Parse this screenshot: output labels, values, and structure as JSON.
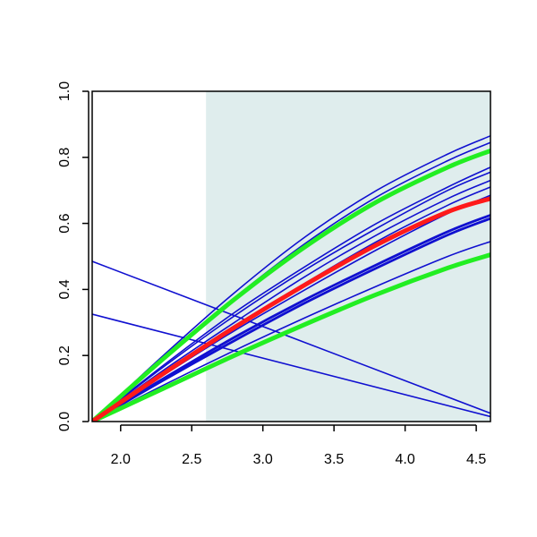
{
  "chart_data": {
    "type": "line",
    "title": "",
    "xlabel": "",
    "ylabel": "",
    "xlim": [
      1.8,
      4.6
    ],
    "ylim": [
      0,
      1
    ],
    "x_ticks": [
      "2.0",
      "2.5",
      "3.0",
      "3.5",
      "4.0",
      "4.5"
    ],
    "y_ticks": [
      "0.0",
      "0.2",
      "0.4",
      "0.6",
      "0.8",
      "1.0"
    ],
    "grid": false,
    "shaded_region": {
      "x_from": 2.6,
      "x_to": 4.6,
      "color": "#dfeded"
    },
    "colors": {
      "blue": "#1010d0",
      "green": "#22ee22",
      "red": "#ff1a1a"
    },
    "series": [
      {
        "color": "blue",
        "width": "thin",
        "x": [
          1.8,
          2.3,
          2.8,
          3.3,
          3.8,
          4.3,
          4.6
        ],
        "y": [
          0.0,
          0.2,
          0.39,
          0.56,
          0.7,
          0.81,
          0.865
        ]
      },
      {
        "color": "blue",
        "width": "thin",
        "x": [
          1.8,
          2.3,
          2.8,
          3.3,
          3.8,
          4.3,
          4.6
        ],
        "y": [
          0.0,
          0.195,
          0.375,
          0.54,
          0.68,
          0.79,
          0.845
        ]
      },
      {
        "color": "blue",
        "width": "thin",
        "x": [
          1.8,
          2.3,
          2.8,
          3.3,
          3.8,
          4.3,
          4.6
        ],
        "y": [
          0.0,
          0.17,
          0.33,
          0.47,
          0.6,
          0.71,
          0.77
        ]
      },
      {
        "color": "blue",
        "width": "thin",
        "x": [
          1.8,
          2.3,
          2.8,
          3.3,
          3.8,
          4.3,
          4.6
        ],
        "y": [
          0.0,
          0.165,
          0.32,
          0.46,
          0.585,
          0.7,
          0.755
        ]
      },
      {
        "color": "blue",
        "width": "thin",
        "x": [
          1.8,
          2.3,
          2.8,
          3.3,
          3.8,
          4.3,
          4.6
        ],
        "y": [
          0.0,
          0.155,
          0.3,
          0.44,
          0.565,
          0.675,
          0.73
        ]
      },
      {
        "color": "blue",
        "width": "thin",
        "x": [
          1.8,
          2.3,
          2.8,
          3.3,
          3.8,
          4.3,
          4.6
        ],
        "y": [
          0.0,
          0.15,
          0.29,
          0.42,
          0.545,
          0.655,
          0.71
        ]
      },
      {
        "color": "blue",
        "width": "thin",
        "x": [
          1.8,
          2.3,
          2.8,
          3.3,
          3.8,
          4.3,
          4.6
        ],
        "y": [
          0.0,
          0.14,
          0.275,
          0.4,
          0.52,
          0.63,
          0.685
        ]
      },
      {
        "color": "blue",
        "width": "medium",
        "x": [
          1.8,
          2.3,
          2.8,
          3.3,
          3.8,
          4.3,
          4.6
        ],
        "y": [
          0.0,
          0.13,
          0.255,
          0.37,
          0.475,
          0.575,
          0.625
        ]
      },
      {
        "color": "blue",
        "width": "medium",
        "x": [
          1.8,
          2.3,
          2.8,
          3.3,
          3.8,
          4.3,
          4.6
        ],
        "y": [
          0.0,
          0.125,
          0.245,
          0.36,
          0.465,
          0.565,
          0.615
        ]
      },
      {
        "color": "blue",
        "width": "thin",
        "x": [
          1.8,
          2.3,
          2.8,
          3.3,
          3.8,
          4.3,
          4.6
        ],
        "y": [
          0.0,
          0.11,
          0.215,
          0.315,
          0.41,
          0.5,
          0.545
        ]
      },
      {
        "color": "blue",
        "width": "thin",
        "x": [
          1.8,
          4.6
        ],
        "y": [
          0.485,
          0.025
        ]
      },
      {
        "color": "blue",
        "width": "thin",
        "x": [
          1.8,
          4.6
        ],
        "y": [
          0.325,
          0.015
        ]
      },
      {
        "color": "green",
        "width": "thick",
        "x": [
          1.8,
          2.3,
          2.8,
          3.3,
          3.8,
          4.3,
          4.6
        ],
        "y": [
          0.0,
          0.19,
          0.37,
          0.53,
          0.665,
          0.77,
          0.82
        ]
      },
      {
        "color": "green",
        "width": "thick",
        "x": [
          1.8,
          2.3,
          2.8,
          3.3,
          3.8,
          4.3,
          4.6
        ],
        "y": [
          0.0,
          0.1,
          0.2,
          0.295,
          0.385,
          0.465,
          0.505
        ]
      },
      {
        "color": "red",
        "width": "thick",
        "x": [
          1.8,
          2.3,
          2.8,
          3.3,
          3.8,
          4.3,
          4.6
        ],
        "y": [
          0.0,
          0.145,
          0.285,
          0.415,
          0.535,
          0.635,
          0.675
        ]
      }
    ]
  }
}
